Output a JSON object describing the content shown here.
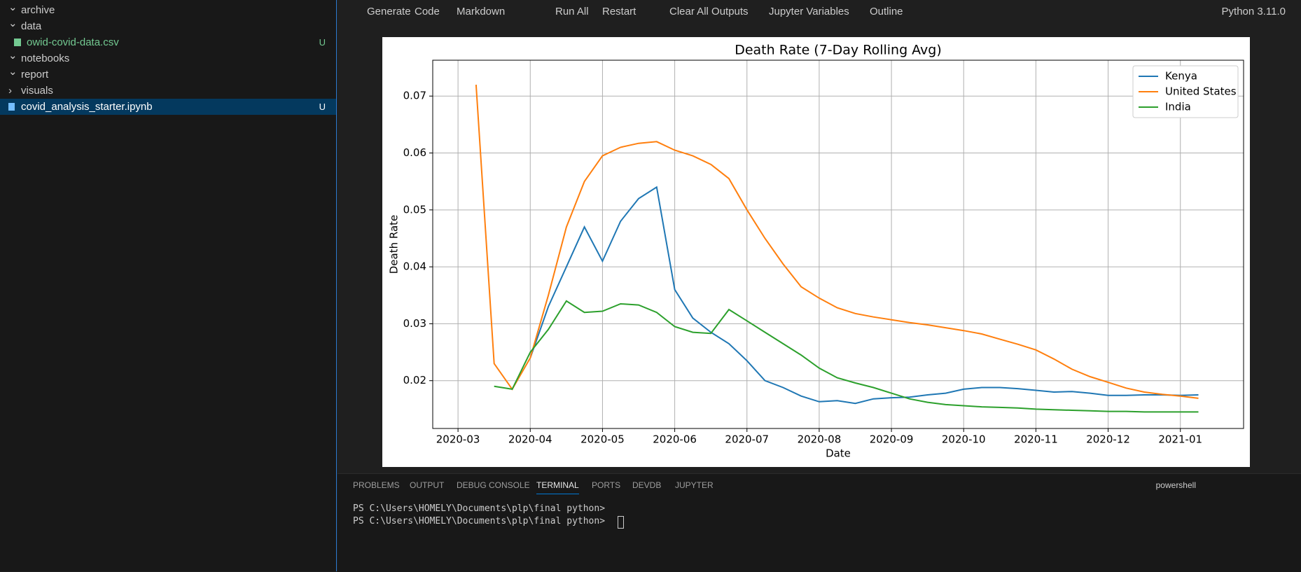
{
  "explorer": {
    "items": [
      {
        "label": "archive",
        "kind": "folder"
      },
      {
        "label": "data",
        "kind": "folder"
      },
      {
        "label": "owid-covid-data.csv",
        "kind": "csv",
        "badge": "U"
      },
      {
        "label": "notebooks",
        "kind": "folder"
      },
      {
        "label": "report",
        "kind": "folder"
      },
      {
        "label": "visuals",
        "kind": "closed"
      },
      {
        "label": "covid_analysis_starter.ipynb",
        "kind": "notebook",
        "badge": "U"
      }
    ]
  },
  "toolbar": {
    "buttons": [
      "Generate",
      "Code",
      "Markdown",
      "Run All",
      "Restart",
      "Clear All Outputs",
      "Jupyter Variables",
      "Outline"
    ],
    "kernel": "Python 3.11.0"
  },
  "panel": {
    "tabs": [
      "PROBLEMS",
      "OUTPUT",
      "DEBUG CONSOLE",
      "TERMINAL",
      "PORTS",
      "DEVDB",
      "JUPYTER"
    ],
    "shell": "powershell",
    "lines": [
      "PS C:\\Users\\HOMELY\\Documents\\plp\\final python>",
      "PS C:\\Users\\HOMELY\\Documents\\plp\\final python>"
    ]
  },
  "chart_data": {
    "type": "line",
    "title": "Death Rate (7-Day Rolling Avg)",
    "x_label": "Date",
    "y_label": "Death Rate",
    "categories": [
      "2020-03",
      null,
      null,
      null,
      "2020-04",
      null,
      null,
      null,
      "2020-05",
      null,
      null,
      null,
      "2020-06",
      null,
      null,
      null,
      "2020-07",
      null,
      null,
      null,
      "2020-08",
      null,
      null,
      null,
      "2020-09",
      null,
      null,
      null,
      "2020-10",
      null,
      null,
      null,
      "2020-11",
      null,
      null,
      null,
      "2020-12",
      null,
      null,
      null,
      "2021-01",
      null
    ],
    "series": [
      {
        "name": "Kenya",
        "color": "#1f77b4",
        "values": [
          null,
          null,
          null,
          null,
          0.024,
          0.033,
          0.04,
          0.047,
          0.041,
          0.048,
          0.052,
          0.054,
          0.036,
          0.031,
          0.0285,
          0.0265,
          0.0235,
          0.02,
          0.0188,
          0.0173,
          0.0163,
          0.0165,
          0.016,
          0.0168,
          0.017,
          0.0171,
          0.0175,
          0.0178,
          0.0185,
          0.0188,
          0.0188,
          0.0186,
          0.0183,
          0.018,
          0.0181,
          0.0178,
          0.0174,
          0.0174,
          0.0175,
          0.0175,
          0.0174,
          0.0175
        ]
      },
      {
        "name": "United States",
        "color": "#ff7f0e",
        "values": [
          null,
          0.072,
          0.023,
          0.0185,
          0.024,
          0.035,
          0.047,
          0.055,
          0.0595,
          0.061,
          0.0617,
          0.062,
          0.0605,
          0.0595,
          0.058,
          0.0555,
          0.05,
          0.045,
          0.0405,
          0.0365,
          0.0345,
          0.0328,
          0.0318,
          0.0312,
          0.0307,
          0.0302,
          0.0298,
          0.0293,
          0.0288,
          0.0282,
          0.0273,
          0.0264,
          0.0254,
          0.0238,
          0.022,
          0.0207,
          0.0197,
          0.0187,
          0.018,
          0.0176,
          0.0173,
          0.0169
        ]
      },
      {
        "name": "India",
        "color": "#2ca02c",
        "values": [
          null,
          null,
          0.019,
          0.0185,
          0.025,
          0.029,
          0.034,
          0.032,
          0.0322,
          0.0335,
          0.0333,
          0.032,
          0.0295,
          0.0285,
          0.0283,
          0.0325,
          0.0305,
          0.0285,
          0.0265,
          0.0245,
          0.0222,
          0.0205,
          0.0196,
          0.0188,
          0.0178,
          0.0168,
          0.0162,
          0.0158,
          0.0156,
          0.0154,
          0.0153,
          0.0152,
          0.015,
          0.0149,
          0.0148,
          0.0147,
          0.0146,
          0.0146,
          0.0145,
          0.0145,
          0.0145,
          0.0145
        ]
      }
    ],
    "ylim": [
      0.0116,
      0.0763
    ],
    "yticks": [
      0.02,
      0.03,
      0.04,
      0.05,
      0.06,
      0.07
    ],
    "grid": true,
    "legend": "upper right"
  }
}
